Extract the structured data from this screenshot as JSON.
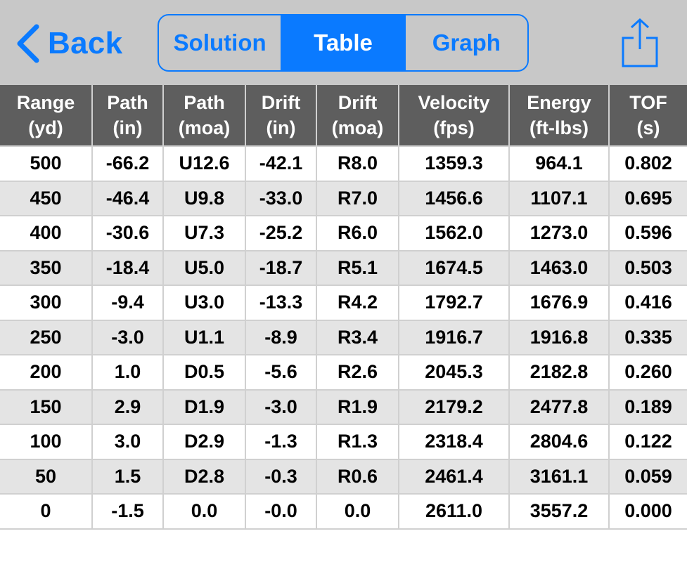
{
  "nav": {
    "back_label": "Back",
    "tabs": [
      {
        "label": "Solution",
        "active": false
      },
      {
        "label": "Table",
        "active": true
      },
      {
        "label": "Graph",
        "active": false
      }
    ],
    "share_icon": "share-icon"
  },
  "colors": {
    "accent": "#0a7aff",
    "navbar_bg": "#c8c8c8",
    "header_bg": "#5e5e5e",
    "row_alt": "#e4e4e4"
  },
  "table": {
    "headers": [
      "Range\n(yd)",
      "Path\n(in)",
      "Path\n(moa)",
      "Drift\n(in)",
      "Drift\n(moa)",
      "Velocity\n(fps)",
      "Energy\n(ft-lbs)",
      "TOF\n(s)"
    ],
    "rows": [
      [
        "500",
        "-66.2",
        "U12.6",
        "-42.1",
        "R8.0",
        "1359.3",
        "964.1",
        "0.802"
      ],
      [
        "450",
        "-46.4",
        "U9.8",
        "-33.0",
        "R7.0",
        "1456.6",
        "1107.1",
        "0.695"
      ],
      [
        "400",
        "-30.6",
        "U7.3",
        "-25.2",
        "R6.0",
        "1562.0",
        "1273.0",
        "0.596"
      ],
      [
        "350",
        "-18.4",
        "U5.0",
        "-18.7",
        "R5.1",
        "1674.5",
        "1463.0",
        "0.503"
      ],
      [
        "300",
        "-9.4",
        "U3.0",
        "-13.3",
        "R4.2",
        "1792.7",
        "1676.9",
        "0.416"
      ],
      [
        "250",
        "-3.0",
        "U1.1",
        "-8.9",
        "R3.4",
        "1916.7",
        "1916.8",
        "0.335"
      ],
      [
        "200",
        "1.0",
        "D0.5",
        "-5.6",
        "R2.6",
        "2045.3",
        "2182.8",
        "0.260"
      ],
      [
        "150",
        "2.9",
        "D1.9",
        "-3.0",
        "R1.9",
        "2179.2",
        "2477.8",
        "0.189"
      ],
      [
        "100",
        "3.0",
        "D2.9",
        "-1.3",
        "R1.3",
        "2318.4",
        "2804.6",
        "0.122"
      ],
      [
        "50",
        "1.5",
        "D2.8",
        "-0.3",
        "R0.6",
        "2461.4",
        "3161.1",
        "0.059"
      ],
      [
        "0",
        "-1.5",
        "0.0",
        "-0.0",
        "0.0",
        "2611.0",
        "3557.2",
        "0.000"
      ]
    ]
  }
}
